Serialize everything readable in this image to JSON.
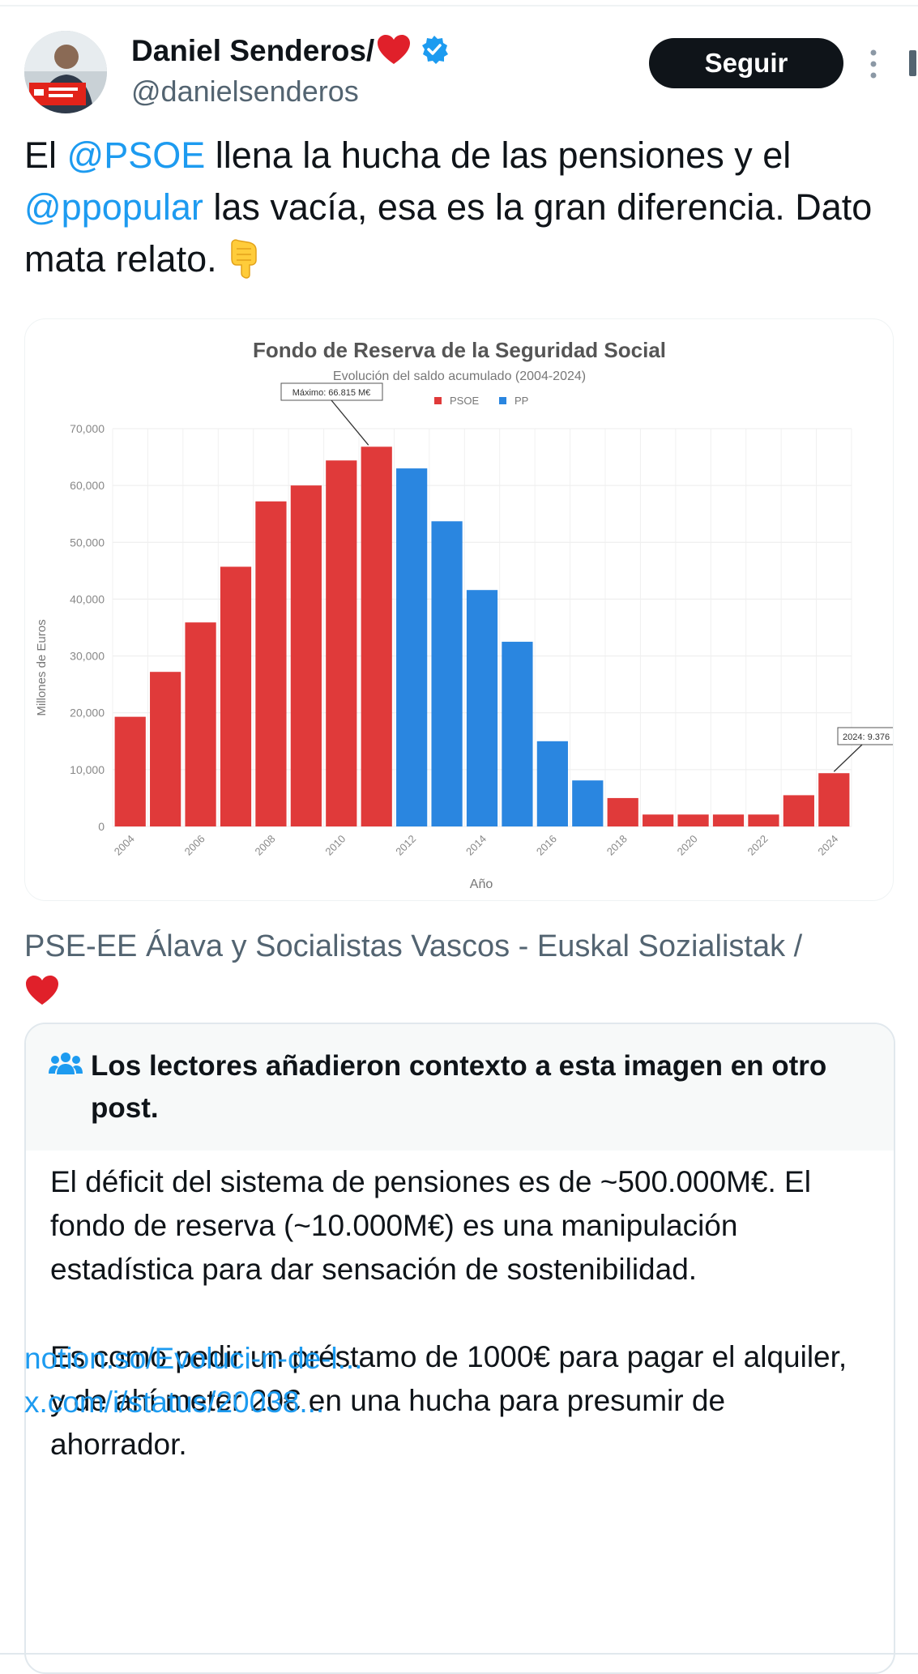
{
  "author": {
    "name": "Daniel Senderos/",
    "name_emoji": "heart",
    "verified_icon": "verified-badge-icon",
    "handle": "@danielsenderos",
    "follow_label": "Seguir"
  },
  "tweet": {
    "mention_1": "@PSOE",
    "text_1": " llena la hucha de las pensiones y el ",
    "mention_2": "@ppopular",
    "text_2": " las vacía, esa es la gran diferencia. Dato mata relato.",
    "emoji": "pointing-down"
  },
  "chart_data": {
    "type": "bar",
    "title": "Fondo de Reserva de la Seguridad Social",
    "subtitle": "Evolución del saldo acumulado (2004-2024)",
    "xlabel": "Año",
    "ylabel": "Millones de Euros",
    "ylim": [
      0,
      70000
    ],
    "yticks": [
      0,
      10000,
      20000,
      30000,
      40000,
      50000,
      60000,
      70000
    ],
    "ytick_labels": [
      "0",
      "10,000",
      "20,000",
      "30,000",
      "40,000",
      "50,000",
      "60,000",
      "70,000"
    ],
    "categories": [
      "2004",
      "2005",
      "2006",
      "2007",
      "2008",
      "2009",
      "2010",
      "2011",
      "2012",
      "2013",
      "2014",
      "2015",
      "2016",
      "2017",
      "2018",
      "2019",
      "2020",
      "2021",
      "2022",
      "2023",
      "2024"
    ],
    "xtick_labels": [
      "2004",
      "2006",
      "2008",
      "2010",
      "2012",
      "2014",
      "2016",
      "2018",
      "2020",
      "2022",
      "2024"
    ],
    "values": [
      19300,
      27200,
      35900,
      45700,
      57200,
      60000,
      64400,
      66815,
      63000,
      53700,
      41600,
      32500,
      15000,
      8100,
      5000,
      2100,
      2100,
      2100,
      2100,
      5500,
      9376
    ],
    "party": [
      "PSOE",
      "PSOE",
      "PSOE",
      "PSOE",
      "PSOE",
      "PSOE",
      "PSOE",
      "PSOE",
      "PP",
      "PP",
      "PP",
      "PP",
      "PP",
      "PP",
      "PSOE",
      "PSOE",
      "PSOE",
      "PSOE",
      "PSOE",
      "PSOE",
      "PSOE"
    ],
    "legend": [
      {
        "name": "PSOE",
        "color": "#e03a3a"
      },
      {
        "name": "PP",
        "color": "#2a86e0"
      }
    ],
    "annotations": {
      "max": "Máximo: 66.815 M€",
      "last": "2024: 9.376"
    }
  },
  "source": {
    "text": "PSE-EE Álava y Socialistas Vascos - Euskal Sozialistak /",
    "emoji": "heart"
  },
  "community_note": {
    "title": "Los lectores añadieron contexto a esta imagen en otro post.",
    "icon": "people-icon",
    "para_1": "El déficit del sistema de pensiones es de ~500.000M€. El fondo de reserva (~10.000M€) es una manipulación estadística para dar sensación de sostenibilidad.",
    "para_2": "Es como pedir un préstamo de 1000€ para pagar el alquiler, y de ahí meter 20€ en una hucha para presumir de ahorrador.",
    "link_1": "notion.so/Evoluci-n-de-l...",
    "link_2": "x.com/i/status/20038..."
  }
}
